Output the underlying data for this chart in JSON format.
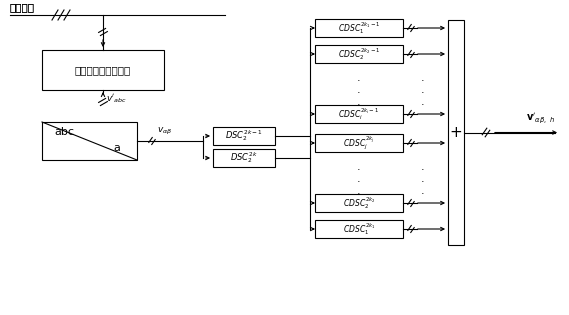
{
  "bg_color": "#ffffff",
  "line_color": "#000000",
  "fig_width": 5.69,
  "fig_height": 3.15,
  "dpi": 100,
  "bus_label": "负载母线",
  "sig_box_label": "信号采集及调理电路",
  "abc_label_top": "abc",
  "abc_label_bot": "a",
  "v_abc": "$\\mathbf{v}'_{abc}$",
  "v_ab": "$\\mathbf{v}'_{\\alpha\\beta}$",
  "v_out": "$\\mathbf{v}'_{\\alpha\\beta,\\ h}$",
  "dsc_labels": [
    "$DSC_2^{2k-1}$",
    "$DSC_2^{2k}$"
  ],
  "cdsc_labels": [
    "$CDSC_1^{2k_1-1}$",
    "$CDSC_2^{2k_2-1}$",
    "$CDSC_i^{2k_i-1}$",
    "$CDSC_j^{2k_j}$",
    "$CDSC_2^{2k_2}$",
    "$CDSC_1^{2k_1}$"
  ],
  "plus_label": "+"
}
